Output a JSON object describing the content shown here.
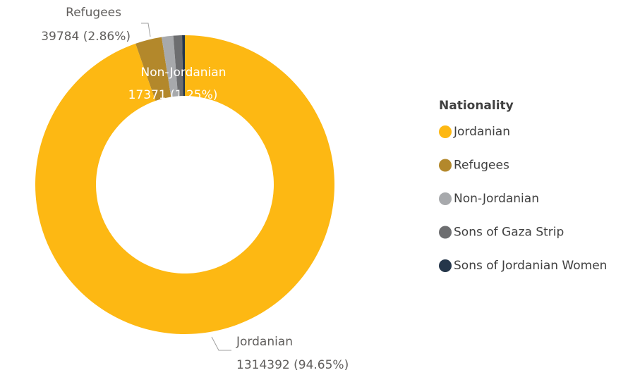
{
  "chart_data": {
    "type": "donut",
    "categories": [
      "Jordanian",
      "Refugees",
      "Non-Jordanian",
      "Sons of Gaza Strip",
      "Sons of Jordanian Women"
    ],
    "values": [
      1314392,
      39784,
      17371,
      13000,
      4140
    ],
    "value_labels": [
      "1314392 (94.65%)",
      "39784 (2.86%)",
      "17371 (1.25%)",
      null,
      null
    ],
    "colors": [
      "#FDB813",
      "#B3882B",
      "#A7A9AC",
      "#6D6E70",
      "#25364A"
    ],
    "legend_title": "Nationality",
    "legend": "right"
  }
}
